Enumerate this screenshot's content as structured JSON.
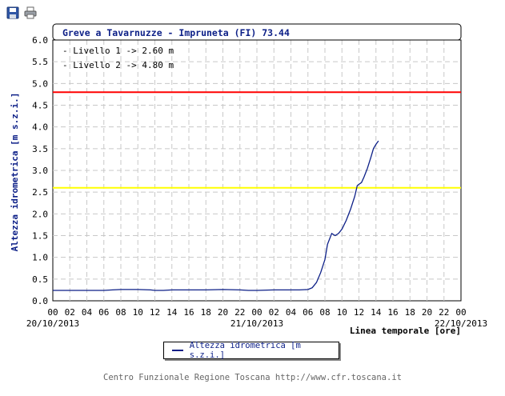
{
  "toolbar": {
    "save_icon": "floppy-disk-icon",
    "print_icon": "printer-icon"
  },
  "chart_data": {
    "type": "line",
    "title": "Greve a Tavarnuzze - Impruneta (FI) 73.44",
    "annotations": [
      "- Livello 1 -> 2.60 m",
      "- Livello 2 -> 4.80 m"
    ],
    "ylabel": "Altezza idrometrica [m s.z.i.]",
    "xlabel": "Linea temporale [ore]",
    "ylim": [
      0,
      6
    ],
    "yticks": [
      "0.0",
      "0.5",
      "1.0",
      "1.5",
      "2.0",
      "2.5",
      "3.0",
      "3.5",
      "4.0",
      "4.5",
      "5.0",
      "5.5",
      "6.0"
    ],
    "xlim": [
      0,
      48
    ],
    "xticks": [
      "00",
      "02",
      "04",
      "06",
      "08",
      "10",
      "12",
      "14",
      "16",
      "18",
      "20",
      "22",
      "00",
      "02",
      "04",
      "06",
      "08",
      "10",
      "12",
      "14",
      "16",
      "18",
      "20",
      "22",
      "00"
    ],
    "date_labels": [
      {
        "hour": 0,
        "text": "20/10/2013"
      },
      {
        "hour": 24,
        "text": "21/10/2013"
      },
      {
        "hour": 48,
        "text": "22/10/2013"
      }
    ],
    "thresholds": [
      {
        "name": "Livello 1",
        "value": 2.6,
        "color": "#ffff00"
      },
      {
        "name": "Livello 2",
        "value": 4.8,
        "color": "#ff0000"
      }
    ],
    "grid": true,
    "legend_position": "bottom-center",
    "series": [
      {
        "name": "Altezza idrometrica [m s.z.i.]",
        "color": "#0c1f87",
        "x": [
          0,
          2,
          4,
          6,
          7,
          8,
          10,
          11.5,
          12,
          13,
          14,
          16,
          18,
          20,
          22,
          23,
          24,
          26,
          28,
          29,
          30,
          30.5,
          31,
          31.5,
          32,
          32.3,
          32.8,
          33.2,
          33.6,
          34,
          34.5,
          35,
          35.5,
          35.8,
          36,
          36.3,
          36.6,
          37,
          37.4,
          37.7,
          38,
          38.3
        ],
        "y": [
          0.24,
          0.24,
          0.24,
          0.24,
          0.25,
          0.26,
          0.26,
          0.25,
          0.24,
          0.24,
          0.25,
          0.25,
          0.25,
          0.26,
          0.25,
          0.24,
          0.24,
          0.25,
          0.25,
          0.25,
          0.26,
          0.3,
          0.42,
          0.65,
          0.95,
          1.3,
          1.55,
          1.5,
          1.55,
          1.65,
          1.85,
          2.1,
          2.4,
          2.65,
          2.68,
          2.72,
          2.85,
          3.05,
          3.3,
          3.5,
          3.6,
          3.68
        ]
      }
    ]
  },
  "legend": {
    "label": "Altezza idrometrica [m s.z.i.]"
  },
  "footer": {
    "text": "Centro Funzionale Regione Toscana http://www.cfr.toscana.it"
  }
}
